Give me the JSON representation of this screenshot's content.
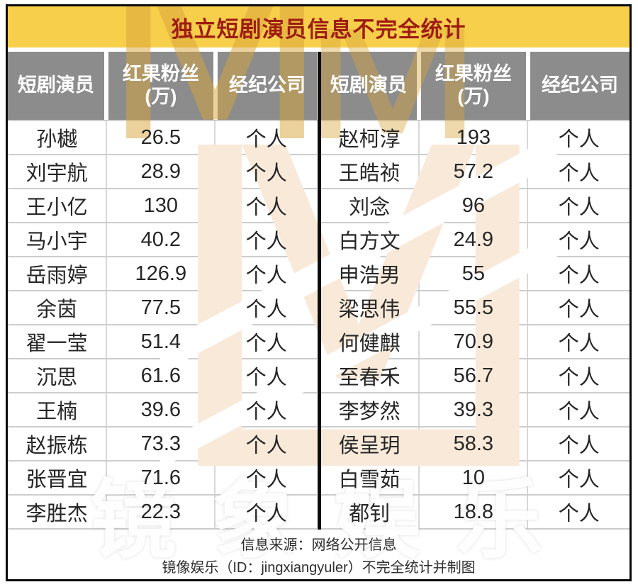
{
  "title": "独立短剧演员信息不完全统计",
  "header": {
    "col_actor": "短剧演员",
    "col_fans_line1": "红果粉丝",
    "col_fans_line2": "(万)",
    "col_agency": "经纪公司"
  },
  "footer": {
    "source": "信息来源：网络公开信息",
    "credit": "镜像娱乐（ID：jingxiangyuler）不完全统计并制图"
  },
  "watermark": {
    "text": "镜象娱乐"
  },
  "colors": {
    "title_bg": "#F7CF4B",
    "title_text": "#9E1C12",
    "header_bg": "#8C8C8C",
    "header_text": "#FFFFFF",
    "body_text": "#262626",
    "grid_line": "#CDCDCD",
    "frame": "#0B0B0B",
    "logo_gold": "#D9A53C",
    "logo_peach": "#F8E9D9"
  },
  "chart_data": {
    "type": "table",
    "title": "独立短剧演员信息不完全统计",
    "columns": [
      "短剧演员",
      "红果粉丝(万)",
      "经纪公司"
    ],
    "panels": [
      {
        "name": "left",
        "rows": [
          [
            "孙樾",
            26.5,
            "个人"
          ],
          [
            "刘宇航",
            28.9,
            "个人"
          ],
          [
            "王小亿",
            130,
            "个人"
          ],
          [
            "马小宇",
            40.2,
            "个人"
          ],
          [
            "岳雨婷",
            126.9,
            "个人"
          ],
          [
            "余茵",
            77.5,
            "个人"
          ],
          [
            "翟一莹",
            51.4,
            "个人"
          ],
          [
            "沉思",
            61.6,
            "个人"
          ],
          [
            "王楠",
            39.6,
            "个人"
          ],
          [
            "赵振栋",
            73.3,
            "个人"
          ],
          [
            "张晋宜",
            71.6,
            "个人"
          ],
          [
            "李胜杰",
            22.3,
            "个人"
          ]
        ]
      },
      {
        "name": "right",
        "rows": [
          [
            "赵柯淳",
            193,
            "个人"
          ],
          [
            "王皓祯",
            57.2,
            "个人"
          ],
          [
            "刘念",
            96,
            "个人"
          ],
          [
            "白方文",
            24.9,
            "个人"
          ],
          [
            "申浩男",
            55,
            "个人"
          ],
          [
            "梁思伟",
            55.5,
            "个人"
          ],
          [
            "何健麒",
            70.9,
            "个人"
          ],
          [
            "至春禾",
            56.7,
            "个人"
          ],
          [
            "李梦然",
            39.3,
            "个人"
          ],
          [
            "侯呈玥",
            58.3,
            "个人"
          ],
          [
            "白雪茹",
            10,
            "个人"
          ],
          [
            "都钊",
            18.8,
            "个人"
          ]
        ]
      }
    ],
    "source_note": "信息来源：网络公开信息",
    "credit_note": "镜像娱乐（ID：jingxiangyuler）不完全统计并制图"
  }
}
